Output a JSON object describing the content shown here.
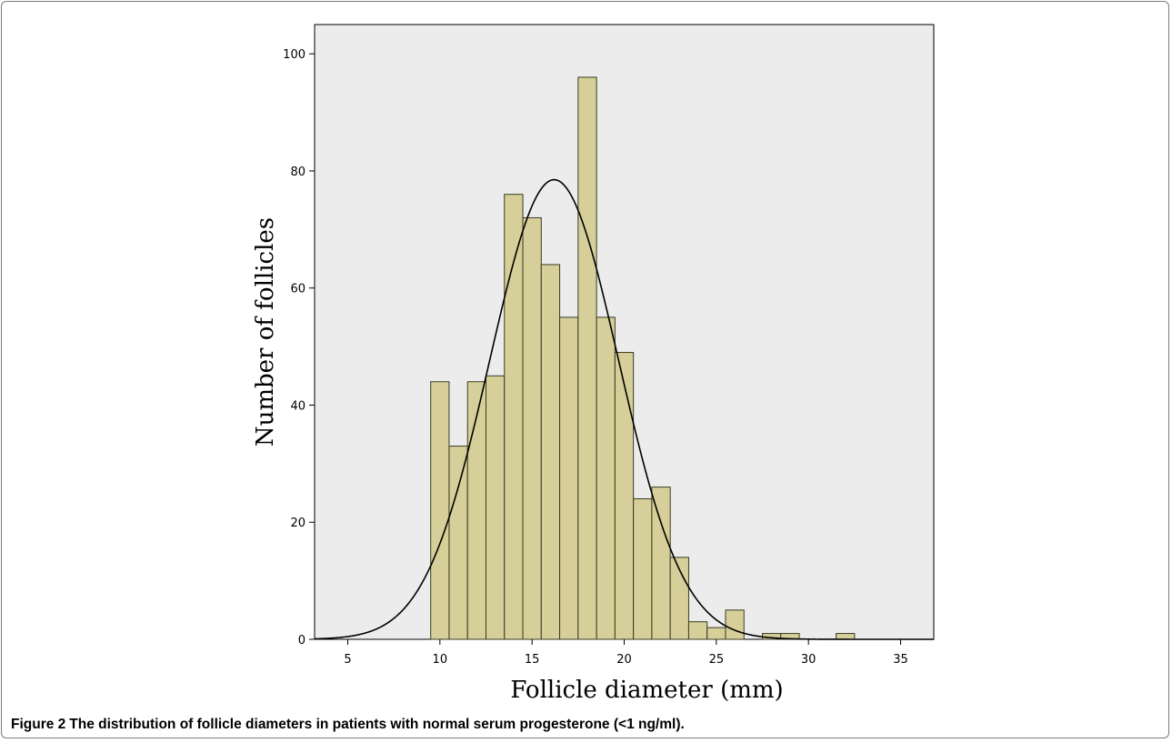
{
  "colors": {
    "bar_fill": "#d6cf99",
    "bar_stroke": "#3a3a22",
    "plot_bg": "#ececec",
    "curve": "#000000"
  },
  "caption": {
    "label": "Figure 2",
    "text": "The distribution of follicle diameters in patients with normal serum progesterone (<1 ng/ml)."
  },
  "chart_data": {
    "type": "bar",
    "subtype": "histogram",
    "xlabel": "Follicle diameter (mm)",
    "ylabel": "Number of follicles",
    "xlim": [
      3.2,
      36.8
    ],
    "ylim": [
      0,
      105
    ],
    "xticks": [
      5,
      10,
      15,
      20,
      25,
      30,
      35
    ],
    "yticks": [
      0,
      20,
      40,
      60,
      80,
      100
    ],
    "grid": false,
    "bin_width": 1.0,
    "bins": [
      {
        "x": 10,
        "count": 44
      },
      {
        "x": 11,
        "count": 33
      },
      {
        "x": 12,
        "count": 44
      },
      {
        "x": 13,
        "count": 45
      },
      {
        "x": 14,
        "count": 76
      },
      {
        "x": 15,
        "count": 72
      },
      {
        "x": 16,
        "count": 64
      },
      {
        "x": 17,
        "count": 55
      },
      {
        "x": 18,
        "count": 96
      },
      {
        "x": 19,
        "count": 55
      },
      {
        "x": 20,
        "count": 49
      },
      {
        "x": 21,
        "count": 24
      },
      {
        "x": 22,
        "count": 26
      },
      {
        "x": 23,
        "count": 14
      },
      {
        "x": 24,
        "count": 3
      },
      {
        "x": 25,
        "count": 2
      },
      {
        "x": 26,
        "count": 5
      },
      {
        "x": 27,
        "count": 0
      },
      {
        "x": 28,
        "count": 1
      },
      {
        "x": 29,
        "count": 1
      },
      {
        "x": 30,
        "count": 0
      },
      {
        "x": 31,
        "count": 0
      },
      {
        "x": 32,
        "count": 1
      }
    ],
    "normal_curve": {
      "mean": 16.2,
      "peak": 78.5,
      "sd": 3.5
    }
  }
}
